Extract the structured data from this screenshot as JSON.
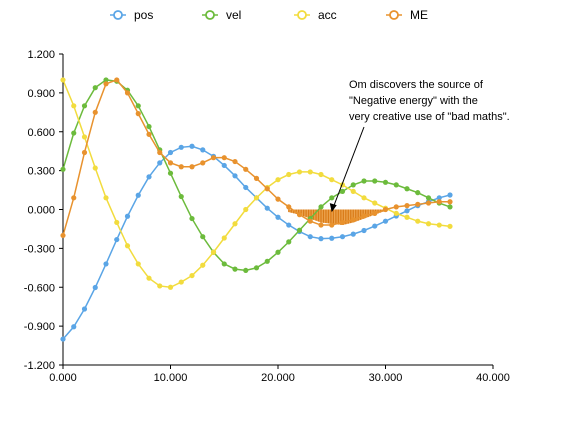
{
  "chart_data": {
    "type": "line",
    "title": "",
    "xlabel": "",
    "ylabel": "",
    "xlim": [
      0,
      40
    ],
    "ylim": [
      -1.2,
      1.2
    ],
    "x_ticks": [
      "0.000",
      "10.000",
      "20.000",
      "30.000",
      "40.000"
    ],
    "y_ticks": [
      "1.200",
      "0.900",
      "0.600",
      "0.300",
      "0.000",
      "-0.300",
      "-0.600",
      "-0.900",
      "-1.200"
    ],
    "x_tick_values": [
      0,
      10,
      20,
      30,
      40
    ],
    "y_tick_values": [
      1.2,
      0.9,
      0.6,
      0.3,
      0.0,
      -0.3,
      -0.6,
      -0.9,
      -1.2
    ],
    "grid": false,
    "legend_position": "top",
    "x": [
      0,
      1,
      2,
      3,
      4,
      5,
      6,
      7,
      8,
      9,
      10,
      11,
      12,
      13,
      14,
      15,
      16,
      17,
      18,
      19,
      20,
      21,
      22,
      23,
      24,
      25,
      26,
      27,
      28,
      29,
      30,
      31,
      32,
      33,
      34,
      35,
      36
    ],
    "series": [
      {
        "name": "pos",
        "color": "#5aa5e6",
        "values": [
          -1.0,
          -0.905,
          -0.768,
          -0.602,
          -0.42,
          -0.232,
          -0.052,
          0.11,
          0.252,
          0.36,
          0.44,
          0.48,
          0.488,
          0.46,
          0.41,
          0.34,
          0.26,
          0.17,
          0.09,
          0.01,
          -0.06,
          -0.12,
          -0.17,
          -0.21,
          -0.225,
          -0.222,
          -0.21,
          -0.19,
          -0.162,
          -0.128,
          -0.09,
          -0.05,
          -0.01,
          0.03,
          0.06,
          0.09,
          0.112
        ]
      },
      {
        "name": "vel",
        "color": "#6cbb3c",
        "values": [
          0.31,
          0.59,
          0.8,
          0.94,
          1.0,
          0.99,
          0.92,
          0.8,
          0.64,
          0.46,
          0.28,
          0.1,
          -0.07,
          -0.21,
          -0.33,
          -0.42,
          -0.46,
          -0.47,
          -0.45,
          -0.4,
          -0.33,
          -0.25,
          -0.16,
          -0.07,
          0.02,
          0.09,
          0.14,
          0.19,
          0.22,
          0.22,
          0.21,
          0.19,
          0.16,
          0.13,
          0.09,
          0.05,
          0.02
        ]
      },
      {
        "name": "acc",
        "color": "#f2dc3e",
        "values": [
          1.0,
          0.8,
          0.56,
          0.32,
          0.09,
          -0.1,
          -0.28,
          -0.42,
          -0.53,
          -0.59,
          -0.6,
          -0.56,
          -0.51,
          -0.43,
          -0.33,
          -0.22,
          -0.11,
          0.0,
          0.09,
          0.17,
          0.23,
          0.27,
          0.29,
          0.29,
          0.27,
          0.23,
          0.19,
          0.14,
          0.09,
          0.05,
          0.01,
          -0.03,
          -0.06,
          -0.09,
          -0.11,
          -0.12,
          -0.13
        ]
      },
      {
        "name": "ME",
        "color": "#e8922e",
        "values": [
          -0.2,
          0.09,
          0.44,
          0.75,
          0.97,
          1.0,
          0.9,
          0.74,
          0.58,
          0.44,
          0.36,
          0.33,
          0.33,
          0.36,
          0.4,
          0.4,
          0.37,
          0.31,
          0.24,
          0.16,
          0.08,
          0.02,
          -0.04,
          -0.09,
          -0.12,
          -0.12,
          -0.1,
          -0.08,
          -0.05,
          -0.03,
          0.0,
          0.02,
          0.03,
          0.04,
          0.05,
          0.06,
          0.06
        ]
      }
    ],
    "annotation": {
      "lines": [
        "Om discovers the source of",
        "\"Negative energy\" with the",
        "very creative use of \"bad maths\"."
      ],
      "arrow_target": [
        25,
        -0.02
      ]
    },
    "negative_energy_fill": {
      "color": "#e8922e",
      "x_range": [
        21,
        30
      ],
      "values": [
        -0.02,
        -0.04,
        -0.07,
        -0.1,
        -0.11,
        -0.12,
        -0.1,
        -0.07,
        -0.04,
        -0.01
      ]
    }
  }
}
